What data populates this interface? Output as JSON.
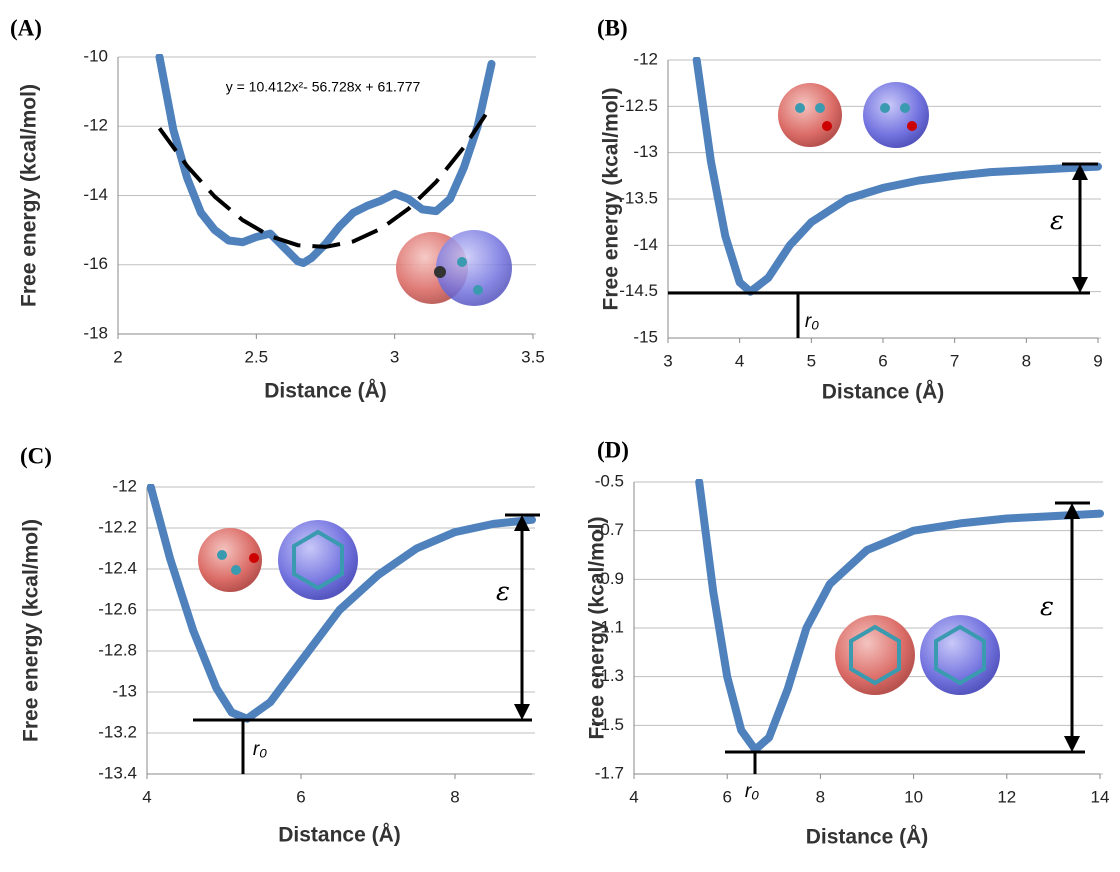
{
  "chart_data": [
    {
      "type": "line",
      "title": "(A)",
      "xlabel": "Distance (Å)",
      "ylabel": "Free energy (kcal/mol)",
      "xlim": [
        2,
        3.5
      ],
      "xticks": [
        2,
        2.5,
        3,
        3.5
      ],
      "ylim": [
        -18,
        -10
      ],
      "yticks": [
        -10,
        -12,
        -14,
        -16,
        -18
      ],
      "grid": true,
      "annotations": [
        "y = 10.412x²- 56.728x + 61.777"
      ],
      "series": [
        {
          "color": "#4f81bd",
          "line_style": "solid",
          "x": [
            2.15,
            2.2,
            2.25,
            2.3,
            2.35,
            2.4,
            2.45,
            2.5,
            2.55,
            2.6,
            2.65,
            2.67,
            2.7,
            2.75,
            2.8,
            2.85,
            2.9,
            2.95,
            3.0,
            3.05,
            3.1,
            3.15,
            3.2,
            3.25,
            3.3,
            3.35
          ],
          "values": [
            -10,
            -12.1,
            -13.5,
            -14.5,
            -15.0,
            -15.3,
            -15.35,
            -15.2,
            -15.1,
            -15.5,
            -15.9,
            -15.95,
            -15.8,
            -15.4,
            -14.9,
            -14.5,
            -14.3,
            -14.15,
            -13.95,
            -14.1,
            -14.4,
            -14.45,
            -14.1,
            -13.2,
            -12.0,
            -10.2
          ]
        },
        {
          "color": "#000000",
          "line_style": "dashed",
          "x": [
            2.15,
            2.25,
            2.35,
            2.45,
            2.55,
            2.65,
            2.75,
            2.85,
            2.95,
            3.05,
            3.15,
            3.25,
            3.35
          ],
          "values": [
            -12.058,
            -13.15,
            -14.034,
            -14.709,
            -15.175,
            -15.434,
            -15.484,
            -15.326,
            -14.961,
            -14.385,
            -13.603,
            -12.612,
            -11.413
          ]
        }
      ]
    },
    {
      "type": "line",
      "title": "(B)",
      "xlabel": "Distance (Å)",
      "ylabel": "Free energy (kcal/mol)",
      "xlim": [
        3,
        9
      ],
      "xticks": [
        3,
        4,
        5,
        6,
        7,
        8,
        9
      ],
      "ylim": [
        -15,
        -12
      ],
      "yticks": [
        -12,
        -12.5,
        -13,
        -13.5,
        -14,
        -14.5,
        -15
      ],
      "grid": true,
      "annotations": [
        "ε",
        "r₀"
      ],
      "series": [
        {
          "color": "#4f81bd",
          "line_style": "solid",
          "x": [
            3.4,
            3.6,
            3.8,
            4.0,
            4.15,
            4.4,
            4.7,
            5.0,
            5.5,
            6,
            6.5,
            7,
            7.5,
            8,
            8.5,
            9
          ],
          "values": [
            -12,
            -13.1,
            -13.9,
            -14.4,
            -14.5,
            -14.35,
            -14.0,
            -13.75,
            -13.5,
            -13.38,
            -13.3,
            -13.25,
            -13.21,
            -13.19,
            -13.17,
            -13.15
          ]
        }
      ]
    },
    {
      "type": "line",
      "title": "(C)",
      "xlabel": "Distance (Å)",
      "ylabel": "Free energy (kcal/mol)",
      "xlim": [
        4,
        9
      ],
      "xticks": [
        4,
        6,
        8
      ],
      "ylim": [
        -13.4,
        -12
      ],
      "yticks": [
        -12,
        -12.2,
        -12.4,
        -12.6,
        -12.8,
        -13,
        -13.2,
        -13.4
      ],
      "grid": true,
      "annotations": [
        "ε",
        "r₀"
      ],
      "series": [
        {
          "color": "#4f81bd",
          "line_style": "solid",
          "x": [
            4.05,
            4.3,
            4.6,
            4.9,
            5.1,
            5.3,
            5.6,
            6.0,
            6.5,
            7.0,
            7.5,
            8.0,
            8.5,
            9.0
          ],
          "values": [
            -12,
            -12.35,
            -12.7,
            -12.98,
            -13.1,
            -13.13,
            -13.05,
            -12.85,
            -12.6,
            -12.43,
            -12.3,
            -12.22,
            -12.18,
            -12.16
          ]
        }
      ]
    },
    {
      "type": "line",
      "title": "(D)",
      "xlabel": "Distance (Å)",
      "ylabel": "Free energy (kcal/mol)",
      "xlim": [
        4,
        14
      ],
      "xticks": [
        4,
        6,
        8,
        10,
        12,
        14
      ],
      "ylim": [
        -1.7,
        -0.5
      ],
      "yticks": [
        -0.5,
        -0.7,
        -0.9,
        -1.1,
        -1.3,
        -1.5,
        -1.7
      ],
      "grid": true,
      "annotations": [
        "ε",
        "r₀"
      ],
      "series": [
        {
          "color": "#4f81bd",
          "line_style": "solid",
          "x": [
            5.4,
            5.7,
            6.0,
            6.3,
            6.6,
            6.9,
            7.3,
            7.7,
            8.2,
            9,
            10,
            11,
            12,
            13,
            14
          ],
          "values": [
            -0.5,
            -0.95,
            -1.3,
            -1.52,
            -1.6,
            -1.55,
            -1.35,
            -1.1,
            -0.92,
            -0.78,
            -0.7,
            -0.67,
            -0.65,
            -0.64,
            -0.63
          ]
        }
      ]
    }
  ]
}
